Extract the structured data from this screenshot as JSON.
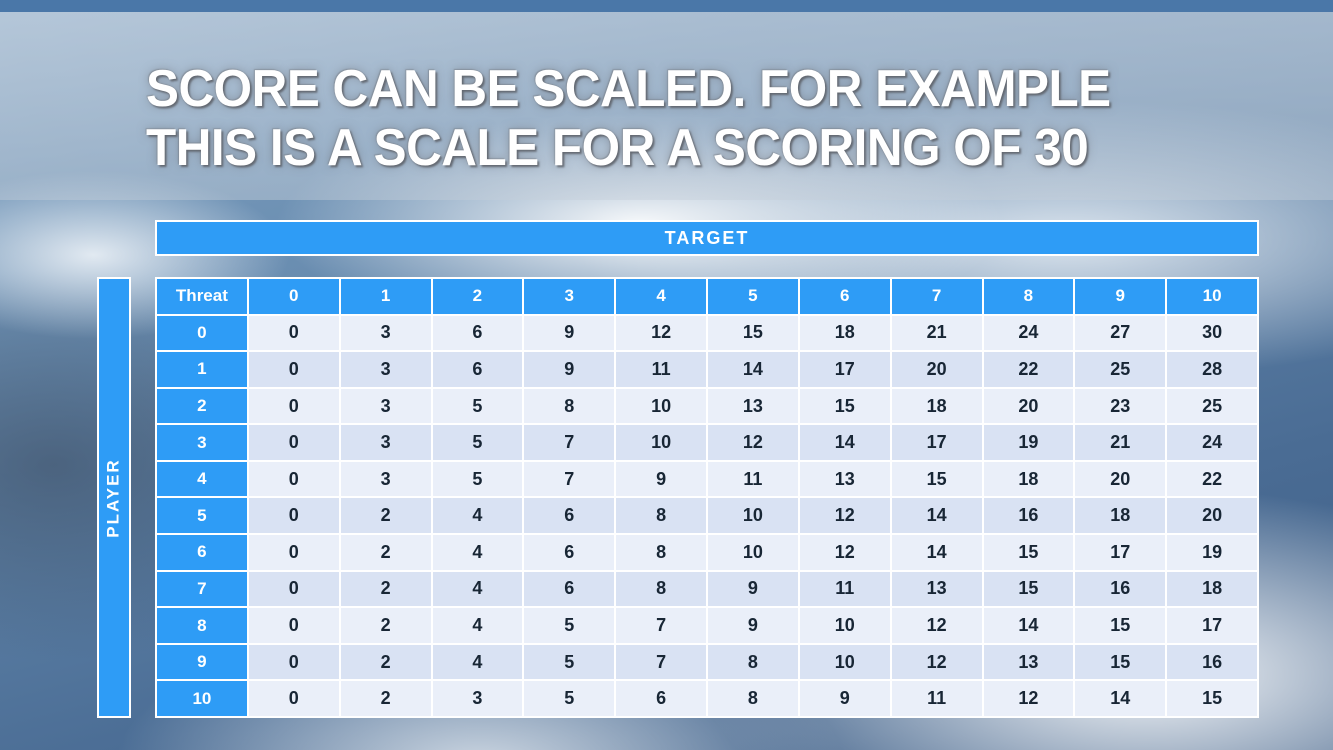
{
  "title": {
    "line1": "SCORE CAN BE SCALED. FOR EXAMPLE",
    "line2": "THIS IS A SCALE FOR A SCORING OF 30"
  },
  "table": {
    "target_label": "TARGET",
    "player_label": "PLAYER",
    "corner_label": "Threat",
    "column_headers": [
      "0",
      "1",
      "2",
      "3",
      "4",
      "5",
      "6",
      "7",
      "8",
      "9",
      "10"
    ],
    "rows": [
      {
        "threat": "0",
        "values": [
          "0",
          "3",
          "6",
          "9",
          "12",
          "15",
          "18",
          "21",
          "24",
          "27",
          "30"
        ]
      },
      {
        "threat": "1",
        "values": [
          "0",
          "3",
          "6",
          "9",
          "11",
          "14",
          "17",
          "20",
          "22",
          "25",
          "28"
        ]
      },
      {
        "threat": "2",
        "values": [
          "0",
          "3",
          "5",
          "8",
          "10",
          "13",
          "15",
          "18",
          "20",
          "23",
          "25"
        ]
      },
      {
        "threat": "3",
        "values": [
          "0",
          "3",
          "5",
          "7",
          "10",
          "12",
          "14",
          "17",
          "19",
          "21",
          "24"
        ]
      },
      {
        "threat": "4",
        "values": [
          "0",
          "3",
          "5",
          "7",
          "9",
          "11",
          "13",
          "15",
          "18",
          "20",
          "22"
        ]
      },
      {
        "threat": "5",
        "values": [
          "0",
          "2",
          "4",
          "6",
          "8",
          "10",
          "12",
          "14",
          "16",
          "18",
          "20"
        ]
      },
      {
        "threat": "6",
        "values": [
          "0",
          "2",
          "4",
          "6",
          "8",
          "10",
          "12",
          "14",
          "15",
          "17",
          "19"
        ]
      },
      {
        "threat": "7",
        "values": [
          "0",
          "2",
          "4",
          "6",
          "8",
          "9",
          "11",
          "13",
          "15",
          "16",
          "18"
        ]
      },
      {
        "threat": "8",
        "values": [
          "0",
          "2",
          "4",
          "5",
          "7",
          "9",
          "10",
          "12",
          "14",
          "15",
          "17"
        ]
      },
      {
        "threat": "9",
        "values": [
          "0",
          "2",
          "4",
          "5",
          "7",
          "8",
          "10",
          "12",
          "13",
          "15",
          "16"
        ]
      },
      {
        "threat": "10",
        "values": [
          "0",
          "2",
          "3",
          "5",
          "6",
          "8",
          "9",
          "11",
          "12",
          "14",
          "15"
        ]
      }
    ]
  },
  "colors": {
    "header_blue": "#2E9CF6",
    "row_light": "#EAEFF9",
    "row_dark": "#D9E2F3",
    "cell_text": "#182635",
    "top_bar": "#4A77A8"
  }
}
